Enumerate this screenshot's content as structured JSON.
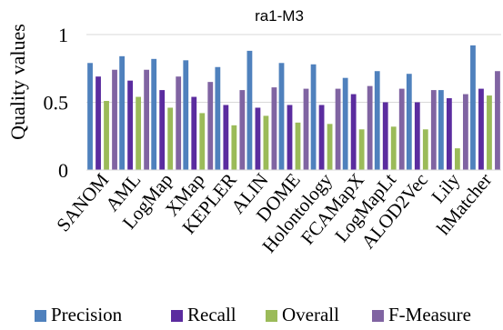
{
  "chart_data": {
    "type": "bar",
    "title": "ra1-M3",
    "xlabel": "",
    "ylabel": "Quality values",
    "ylim": [
      0,
      1
    ],
    "yticks": [
      0,
      0.5,
      1
    ],
    "ytick_labels": [
      "0",
      "0.5",
      "1"
    ],
    "grid": true,
    "legend_position": "bottom",
    "categories": [
      "SANOM",
      "AML",
      "LogMap",
      "XMap",
      "KEPLER",
      "ALIN",
      "DOME",
      "Holontology",
      "FCAMapX",
      "LogMapLt",
      "ALOD2Vec",
      "Lily",
      "hMatcher"
    ],
    "series": [
      {
        "name": "Precision",
        "color": "#4F81BD",
        "values": [
          0.79,
          0.84,
          0.82,
          0.81,
          0.76,
          0.88,
          0.79,
          0.78,
          0.68,
          0.73,
          0.71,
          0.59,
          0.92
        ]
      },
      {
        "name": "Recall",
        "color": "#5B2C9F",
        "values": [
          0.69,
          0.66,
          0.59,
          0.54,
          0.48,
          0.46,
          0.48,
          0.48,
          0.56,
          0.5,
          0.5,
          0.53,
          0.6
        ]
      },
      {
        "name": "Overall",
        "color": "#9BBB59",
        "values": [
          0.51,
          0.54,
          0.46,
          0.42,
          0.33,
          0.4,
          0.35,
          0.34,
          0.3,
          0.32,
          0.3,
          0.16,
          0.55
        ]
      },
      {
        "name": "F-Measure",
        "color": "#8064A2",
        "values": [
          0.74,
          0.74,
          0.69,
          0.65,
          0.59,
          0.61,
          0.6,
          0.6,
          0.62,
          0.6,
          0.59,
          0.56,
          0.73
        ]
      }
    ]
  }
}
